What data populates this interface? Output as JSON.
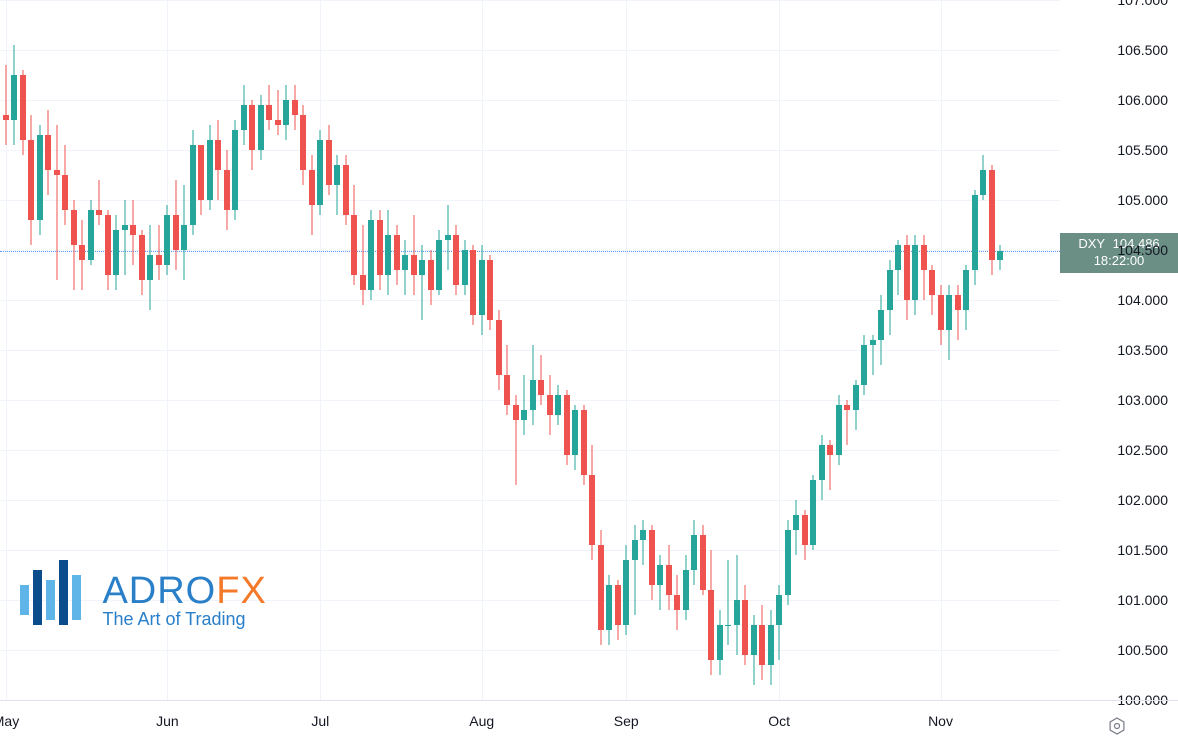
{
  "chart": {
    "type": "candlestick",
    "symbol": "DXY",
    "current_price": "104.486",
    "countdown": "18:22:00",
    "y_axis": {
      "min": 100.0,
      "max": 107.0,
      "labels": [
        "107.000",
        "106.500",
        "106.000",
        "105.500",
        "105.000",
        "104.500",
        "104.000",
        "103.500",
        "103.000",
        "102.500",
        "102.000",
        "101.500",
        "101.000",
        "100.500",
        "100.000"
      ],
      "tick_step": 0.5,
      "label_fontsize": 14,
      "label_color": "#131722"
    },
    "x_axis": {
      "labels": [
        "May",
        "Jun",
        "Jul",
        "Aug",
        "Sep",
        "Oct",
        "Nov"
      ],
      "label_fontsize": 14,
      "label_color": "#131722"
    },
    "colors": {
      "up_body": "#26a69a",
      "up_border": "#26a69a",
      "down_body": "#ef5350",
      "down_border": "#ef5350",
      "background": "#ffffff",
      "grid": "#f0f3fa",
      "price_line": "#5b9cf6",
      "price_badge_bg": "#6b8e85",
      "axis_border": "#e0e3eb"
    },
    "candle_width": 6,
    "candles": [
      {
        "o": 105.85,
        "h": 106.35,
        "l": 105.55,
        "c": 105.8
      },
      {
        "o": 105.8,
        "h": 106.55,
        "l": 105.55,
        "c": 106.25
      },
      {
        "o": 106.25,
        "h": 106.3,
        "l": 105.45,
        "c": 105.6
      },
      {
        "o": 105.6,
        "h": 105.85,
        "l": 104.55,
        "c": 104.8
      },
      {
        "o": 104.8,
        "h": 105.75,
        "l": 104.65,
        "c": 105.65
      },
      {
        "o": 105.65,
        "h": 105.9,
        "l": 105.05,
        "c": 105.3
      },
      {
        "o": 105.3,
        "h": 105.75,
        "l": 104.2,
        "c": 105.25
      },
      {
        "o": 105.25,
        "h": 105.55,
        "l": 104.75,
        "c": 104.9
      },
      {
        "o": 104.9,
        "h": 105.0,
        "l": 104.1,
        "c": 104.55
      },
      {
        "o": 104.55,
        "h": 104.8,
        "l": 104.1,
        "c": 104.4
      },
      {
        "o": 104.4,
        "h": 105.0,
        "l": 104.35,
        "c": 104.9
      },
      {
        "o": 104.9,
        "h": 105.2,
        "l": 104.75,
        "c": 104.85
      },
      {
        "o": 104.85,
        "h": 104.9,
        "l": 104.1,
        "c": 104.25
      },
      {
        "o": 104.25,
        "h": 104.85,
        "l": 104.1,
        "c": 104.7
      },
      {
        "o": 104.7,
        "h": 105.0,
        "l": 104.25,
        "c": 104.75
      },
      {
        "o": 104.75,
        "h": 105.0,
        "l": 104.35,
        "c": 104.65
      },
      {
        "o": 104.65,
        "h": 104.7,
        "l": 104.05,
        "c": 104.2
      },
      {
        "o": 104.2,
        "h": 104.75,
        "l": 103.9,
        "c": 104.45
      },
      {
        "o": 104.45,
        "h": 104.75,
        "l": 104.2,
        "c": 104.35
      },
      {
        "o": 104.35,
        "h": 104.95,
        "l": 104.25,
        "c": 104.85
      },
      {
        "o": 104.85,
        "h": 105.2,
        "l": 104.3,
        "c": 104.5
      },
      {
        "o": 104.5,
        "h": 105.15,
        "l": 104.2,
        "c": 104.75
      },
      {
        "o": 104.75,
        "h": 105.7,
        "l": 104.65,
        "c": 105.55
      },
      {
        "o": 105.55,
        "h": 105.55,
        "l": 104.85,
        "c": 105.0
      },
      {
        "o": 105.0,
        "h": 105.75,
        "l": 104.9,
        "c": 105.6
      },
      {
        "o": 105.6,
        "h": 105.8,
        "l": 105.0,
        "c": 105.3
      },
      {
        "o": 105.3,
        "h": 105.5,
        "l": 104.7,
        "c": 104.9
      },
      {
        "o": 104.9,
        "h": 105.8,
        "l": 104.8,
        "c": 105.7
      },
      {
        "o": 105.7,
        "h": 106.15,
        "l": 105.55,
        "c": 105.95
      },
      {
        "o": 105.95,
        "h": 106.0,
        "l": 105.3,
        "c": 105.5
      },
      {
        "o": 105.5,
        "h": 106.05,
        "l": 105.4,
        "c": 105.95
      },
      {
        "o": 105.95,
        "h": 106.15,
        "l": 105.7,
        "c": 105.8
      },
      {
        "o": 105.8,
        "h": 106.1,
        "l": 105.65,
        "c": 105.75
      },
      {
        "o": 105.75,
        "h": 106.15,
        "l": 105.6,
        "c": 106.0
      },
      {
        "o": 106.0,
        "h": 106.15,
        "l": 105.7,
        "c": 105.85
      },
      {
        "o": 105.85,
        "h": 105.95,
        "l": 105.15,
        "c": 105.3
      },
      {
        "o": 105.3,
        "h": 105.45,
        "l": 104.65,
        "c": 104.95
      },
      {
        "o": 104.95,
        "h": 105.7,
        "l": 104.85,
        "c": 105.6
      },
      {
        "o": 105.6,
        "h": 105.75,
        "l": 105.05,
        "c": 105.15
      },
      {
        "o": 105.15,
        "h": 105.45,
        "l": 104.85,
        "c": 105.35
      },
      {
        "o": 105.35,
        "h": 105.45,
        "l": 104.75,
        "c": 104.85
      },
      {
        "o": 104.85,
        "h": 105.15,
        "l": 104.15,
        "c": 104.25
      },
      {
        "o": 104.25,
        "h": 104.75,
        "l": 103.95,
        "c": 104.1
      },
      {
        "o": 104.1,
        "h": 104.9,
        "l": 104.0,
        "c": 104.8
      },
      {
        "o": 104.8,
        "h": 104.9,
        "l": 104.1,
        "c": 104.25
      },
      {
        "o": 104.25,
        "h": 104.9,
        "l": 104.05,
        "c": 104.65
      },
      {
        "o": 104.65,
        "h": 104.75,
        "l": 104.15,
        "c": 104.3
      },
      {
        "o": 104.3,
        "h": 104.6,
        "l": 104.05,
        "c": 104.45
      },
      {
        "o": 104.45,
        "h": 104.85,
        "l": 104.05,
        "c": 104.25
      },
      {
        "o": 104.25,
        "h": 104.55,
        "l": 103.8,
        "c": 104.4
      },
      {
        "o": 104.4,
        "h": 104.5,
        "l": 103.95,
        "c": 104.1
      },
      {
        "o": 104.1,
        "h": 104.7,
        "l": 104.05,
        "c": 104.6
      },
      {
        "o": 104.6,
        "h": 104.95,
        "l": 104.3,
        "c": 104.65
      },
      {
        "o": 104.65,
        "h": 104.75,
        "l": 104.05,
        "c": 104.15
      },
      {
        "o": 104.15,
        "h": 104.6,
        "l": 104.05,
        "c": 104.5
      },
      {
        "o": 104.5,
        "h": 104.55,
        "l": 103.75,
        "c": 103.85
      },
      {
        "o": 103.85,
        "h": 104.55,
        "l": 103.65,
        "c": 104.4
      },
      {
        "o": 104.4,
        "h": 104.45,
        "l": 103.7,
        "c": 103.8
      },
      {
        "o": 103.8,
        "h": 103.9,
        "l": 103.1,
        "c": 103.25
      },
      {
        "o": 103.25,
        "h": 103.55,
        "l": 102.85,
        "c": 102.95
      },
      {
        "o": 102.95,
        "h": 103.05,
        "l": 102.15,
        "c": 102.8
      },
      {
        "o": 102.8,
        "h": 103.25,
        "l": 102.65,
        "c": 102.9
      },
      {
        "o": 102.9,
        "h": 103.55,
        "l": 102.75,
        "c": 103.2
      },
      {
        "o": 103.2,
        "h": 103.45,
        "l": 102.95,
        "c": 103.05
      },
      {
        "o": 103.05,
        "h": 103.25,
        "l": 102.65,
        "c": 102.85
      },
      {
        "o": 102.85,
        "h": 103.15,
        "l": 102.75,
        "c": 103.05
      },
      {
        "o": 103.05,
        "h": 103.1,
        "l": 102.35,
        "c": 102.45
      },
      {
        "o": 102.45,
        "h": 102.95,
        "l": 102.3,
        "c": 102.9
      },
      {
        "o": 102.9,
        "h": 102.95,
        "l": 102.15,
        "c": 102.25
      },
      {
        "o": 102.25,
        "h": 102.55,
        "l": 101.4,
        "c": 101.55
      },
      {
        "o": 101.55,
        "h": 101.7,
        "l": 100.55,
        "c": 100.7
      },
      {
        "o": 100.7,
        "h": 101.25,
        "l": 100.55,
        "c": 101.15
      },
      {
        "o": 101.15,
        "h": 101.2,
        "l": 100.6,
        "c": 100.75
      },
      {
        "o": 100.75,
        "h": 101.55,
        "l": 100.65,
        "c": 101.4
      },
      {
        "o": 101.4,
        "h": 101.75,
        "l": 100.85,
        "c": 101.6
      },
      {
        "o": 101.6,
        "h": 101.8,
        "l": 101.35,
        "c": 101.7
      },
      {
        "o": 101.7,
        "h": 101.75,
        "l": 101.0,
        "c": 101.15
      },
      {
        "o": 101.15,
        "h": 101.45,
        "l": 100.9,
        "c": 101.35
      },
      {
        "o": 101.35,
        "h": 101.55,
        "l": 100.9,
        "c": 101.05
      },
      {
        "o": 101.05,
        "h": 101.25,
        "l": 100.7,
        "c": 100.9
      },
      {
        "o": 100.9,
        "h": 101.45,
        "l": 100.8,
        "c": 101.3
      },
      {
        "o": 101.3,
        "h": 101.8,
        "l": 101.15,
        "c": 101.65
      },
      {
        "o": 101.65,
        "h": 101.75,
        "l": 101.05,
        "c": 101.1
      },
      {
        "o": 101.1,
        "h": 101.5,
        "l": 100.25,
        "c": 100.4
      },
      {
        "o": 100.4,
        "h": 100.9,
        "l": 100.25,
        "c": 100.75
      },
      {
        "o": 100.75,
        "h": 101.4,
        "l": 100.55,
        "c": 100.75
      },
      {
        "o": 100.75,
        "h": 101.45,
        "l": 100.45,
        "c": 101.0
      },
      {
        "o": 101.0,
        "h": 101.15,
        "l": 100.35,
        "c": 100.45
      },
      {
        "o": 100.45,
        "h": 100.85,
        "l": 100.15,
        "c": 100.75
      },
      {
        "o": 100.75,
        "h": 100.95,
        "l": 100.2,
        "c": 100.35
      },
      {
        "o": 100.35,
        "h": 100.9,
        "l": 100.15,
        "c": 100.75
      },
      {
        "o": 100.75,
        "h": 101.15,
        "l": 100.4,
        "c": 101.05
      },
      {
        "o": 101.05,
        "h": 101.8,
        "l": 100.95,
        "c": 101.7
      },
      {
        "o": 101.7,
        "h": 102.0,
        "l": 101.45,
        "c": 101.85
      },
      {
        "o": 101.85,
        "h": 101.9,
        "l": 101.4,
        "c": 101.55
      },
      {
        "o": 101.55,
        "h": 102.25,
        "l": 101.5,
        "c": 102.2
      },
      {
        "o": 102.2,
        "h": 102.65,
        "l": 102.0,
        "c": 102.55
      },
      {
        "o": 102.55,
        "h": 102.6,
        "l": 102.1,
        "c": 102.45
      },
      {
        "o": 102.45,
        "h": 103.05,
        "l": 102.35,
        "c": 102.95
      },
      {
        "o": 102.95,
        "h": 103.0,
        "l": 102.55,
        "c": 102.9
      },
      {
        "o": 102.9,
        "h": 103.2,
        "l": 102.7,
        "c": 103.15
      },
      {
        "o": 103.15,
        "h": 103.65,
        "l": 103.05,
        "c": 103.55
      },
      {
        "o": 103.55,
        "h": 103.65,
        "l": 103.25,
        "c": 103.6
      },
      {
        "o": 103.6,
        "h": 104.05,
        "l": 103.35,
        "c": 103.9
      },
      {
        "o": 103.9,
        "h": 104.4,
        "l": 103.65,
        "c": 104.3
      },
      {
        "o": 104.3,
        "h": 104.6,
        "l": 104.05,
        "c": 104.55
      },
      {
        "o": 104.55,
        "h": 104.65,
        "l": 103.8,
        "c": 104.0
      },
      {
        "o": 104.0,
        "h": 104.65,
        "l": 103.85,
        "c": 104.55
      },
      {
        "o": 104.55,
        "h": 104.65,
        "l": 104.0,
        "c": 104.3
      },
      {
        "o": 104.3,
        "h": 104.35,
        "l": 103.85,
        "c": 104.05
      },
      {
        "o": 104.05,
        "h": 104.15,
        "l": 103.55,
        "c": 103.7
      },
      {
        "o": 103.7,
        "h": 104.15,
        "l": 103.4,
        "c": 104.05
      },
      {
        "o": 104.05,
        "h": 104.15,
        "l": 103.6,
        "c": 103.9
      },
      {
        "o": 103.9,
        "h": 104.35,
        "l": 103.7,
        "c": 104.3
      },
      {
        "o": 104.3,
        "h": 105.1,
        "l": 104.15,
        "c": 105.05
      },
      {
        "o": 105.05,
        "h": 105.45,
        "l": 105.0,
        "c": 105.3
      },
      {
        "o": 105.3,
        "h": 105.35,
        "l": 104.25,
        "c": 104.4
      },
      {
        "o": 104.4,
        "h": 104.55,
        "l": 104.3,
        "c": 104.49
      }
    ]
  },
  "logo": {
    "brand_part1": "ADRO",
    "brand_part2": "FX",
    "brand_color1": "#2a7fc9",
    "brand_color2": "#f47929",
    "tagline": "The Art of Trading",
    "tagline_color": "#2a7fc9",
    "bar_colors": [
      "#5fb4e8",
      "#0b4d8c",
      "#5fb4e8",
      "#0b4d8c",
      "#5fb4e8"
    ]
  }
}
